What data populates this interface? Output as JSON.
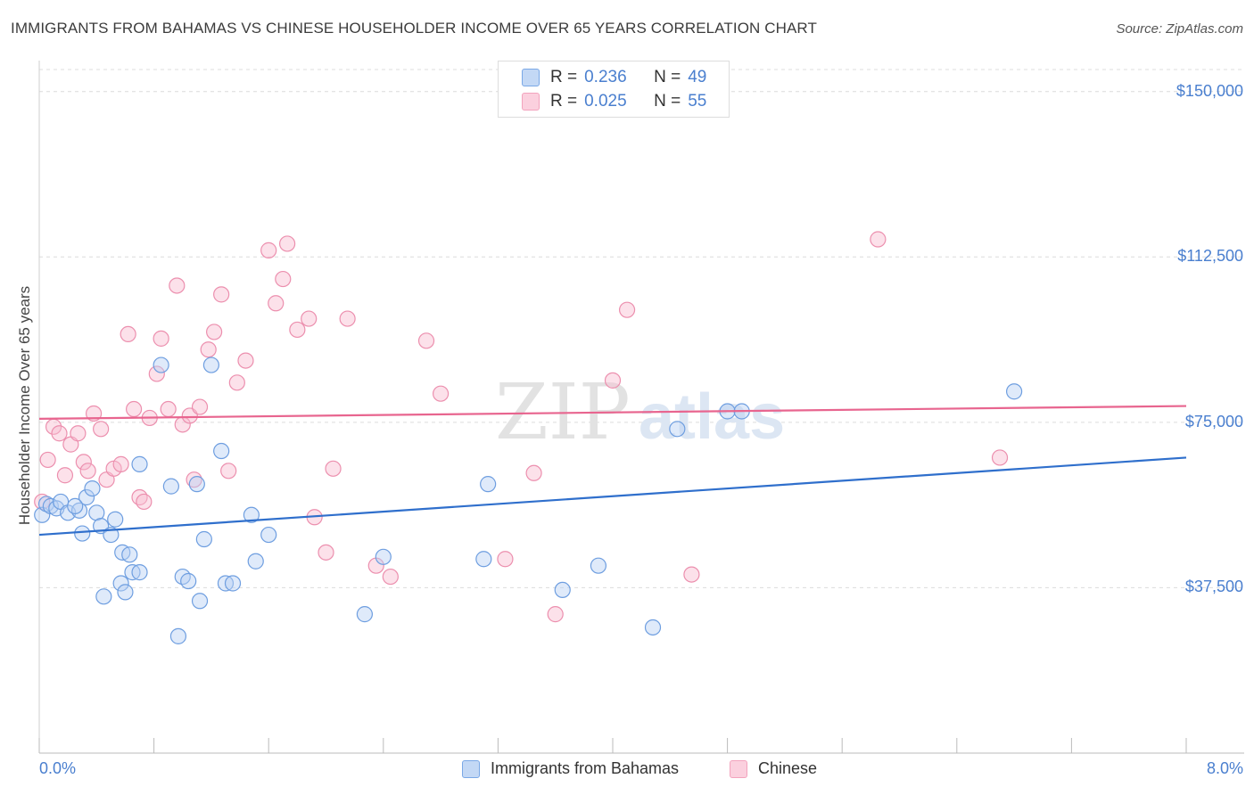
{
  "chart_data": {
    "type": "scatter",
    "title": "IMMIGRANTS FROM BAHAMAS VS CHINESE HOUSEHOLDER INCOME OVER 65 YEARS CORRELATION CHART",
    "source": "Source: ZipAtlas.com",
    "ylabel": "Householder Income Over 65 years",
    "xlim": [
      0,
      8
    ],
    "ylim": [
      0,
      155000
    ],
    "x_tick_labels": [
      "0.0%",
      "8.0%"
    ],
    "y_ticks": [
      {
        "value": 37500,
        "label": "$37,500"
      },
      {
        "value": 75000,
        "label": "$75,000"
      },
      {
        "value": 112500,
        "label": "$112,500"
      },
      {
        "value": 150000,
        "label": "$150,000"
      }
    ],
    "watermark": "ZIPatlas",
    "legend": [
      {
        "r_label": "R =",
        "r_value": "0.236",
        "n_label": "N =",
        "n_value": "49"
      },
      {
        "r_label": "R =",
        "r_value": "0.025",
        "n_label": "N =",
        "n_value": "55"
      }
    ],
    "series": [
      {
        "name": "Immigrants from Bahamas",
        "color": "#7aa8e6",
        "line_color": "#2f6fcc",
        "trend": {
          "x": [
            0,
            8
          ],
          "y": [
            49500,
            67000
          ]
        },
        "points": [
          [
            0.02,
            54000
          ],
          [
            0.05,
            56500
          ],
          [
            0.08,
            56000
          ],
          [
            0.12,
            55500
          ],
          [
            0.15,
            57000
          ],
          [
            0.2,
            54500
          ],
          [
            0.28,
            55000
          ],
          [
            0.33,
            58000
          ],
          [
            0.4,
            54500
          ],
          [
            0.43,
            51500
          ],
          [
            0.5,
            49500
          ],
          [
            0.3,
            49800
          ],
          [
            0.37,
            60000
          ],
          [
            0.7,
            65500
          ],
          [
            0.53,
            53000
          ],
          [
            0.58,
            45500
          ],
          [
            0.63,
            45000
          ],
          [
            0.65,
            41000
          ],
          [
            0.57,
            38500
          ],
          [
            0.6,
            36500
          ],
          [
            0.85,
            88000
          ],
          [
            0.92,
            60500
          ],
          [
            1.0,
            40000
          ],
          [
            1.04,
            39000
          ],
          [
            1.1,
            61000
          ],
          [
            1.15,
            48500
          ],
          [
            1.2,
            88000
          ],
          [
            1.27,
            68500
          ],
          [
            1.3,
            38500
          ],
          [
            1.35,
            38500
          ],
          [
            1.48,
            54000
          ],
          [
            1.51,
            43500
          ],
          [
            1.6,
            49500
          ],
          [
            2.27,
            31500
          ],
          [
            2.4,
            44500
          ],
          [
            0.45,
            35500
          ],
          [
            1.12,
            34500
          ],
          [
            0.97,
            26500
          ],
          [
            3.1,
            44000
          ],
          [
            3.13,
            61000
          ],
          [
            3.65,
            37000
          ],
          [
            3.9,
            42500
          ],
          [
            4.28,
            28500
          ],
          [
            4.45,
            73500
          ],
          [
            4.8,
            77500
          ],
          [
            4.9,
            77500
          ],
          [
            6.8,
            82000
          ],
          [
            0.7,
            41000
          ],
          [
            0.25,
            56000
          ]
        ]
      },
      {
        "name": "Chinese",
        "color": "#f3a3bd",
        "line_color": "#e8658f",
        "trend": {
          "x": [
            0,
            8
          ],
          "y": [
            75800,
            78700
          ]
        },
        "points": [
          [
            0.02,
            57000
          ],
          [
            0.06,
            66500
          ],
          [
            0.1,
            74000
          ],
          [
            0.14,
            72500
          ],
          [
            0.18,
            63000
          ],
          [
            0.22,
            70000
          ],
          [
            0.27,
            72500
          ],
          [
            0.31,
            66000
          ],
          [
            0.34,
            64000
          ],
          [
            0.38,
            77000
          ],
          [
            0.43,
            73500
          ],
          [
            0.47,
            62000
          ],
          [
            0.52,
            64500
          ],
          [
            0.57,
            65500
          ],
          [
            0.62,
            95000
          ],
          [
            0.66,
            78000
          ],
          [
            0.7,
            58000
          ],
          [
            0.73,
            57000
          ],
          [
            0.77,
            76000
          ],
          [
            0.82,
            86000
          ],
          [
            0.85,
            94000
          ],
          [
            0.9,
            78000
          ],
          [
            0.96,
            106000
          ],
          [
            1.0,
            74500
          ],
          [
            1.05,
            76500
          ],
          [
            1.08,
            62000
          ],
          [
            1.12,
            78500
          ],
          [
            1.18,
            91500
          ],
          [
            1.22,
            95500
          ],
          [
            1.27,
            104000
          ],
          [
            1.32,
            64000
          ],
          [
            1.38,
            84000
          ],
          [
            1.44,
            89000
          ],
          [
            1.6,
            114000
          ],
          [
            1.65,
            102000
          ],
          [
            1.7,
            107500
          ],
          [
            1.73,
            115500
          ],
          [
            1.8,
            96000
          ],
          [
            1.88,
            98500
          ],
          [
            1.92,
            53500
          ],
          [
            2.0,
            45500
          ],
          [
            2.05,
            64500
          ],
          [
            2.15,
            98500
          ],
          [
            2.35,
            42500
          ],
          [
            2.45,
            40000
          ],
          [
            2.7,
            93500
          ],
          [
            2.8,
            81500
          ],
          [
            3.25,
            44000
          ],
          [
            3.45,
            63500
          ],
          [
            3.6,
            31500
          ],
          [
            4.0,
            84500
          ],
          [
            4.1,
            100500
          ],
          [
            4.55,
            40500
          ],
          [
            5.85,
            116500
          ],
          [
            6.7,
            67000
          ]
        ]
      }
    ],
    "bottom_legend": [
      "Immigrants from Bahamas",
      "Chinese"
    ]
  }
}
